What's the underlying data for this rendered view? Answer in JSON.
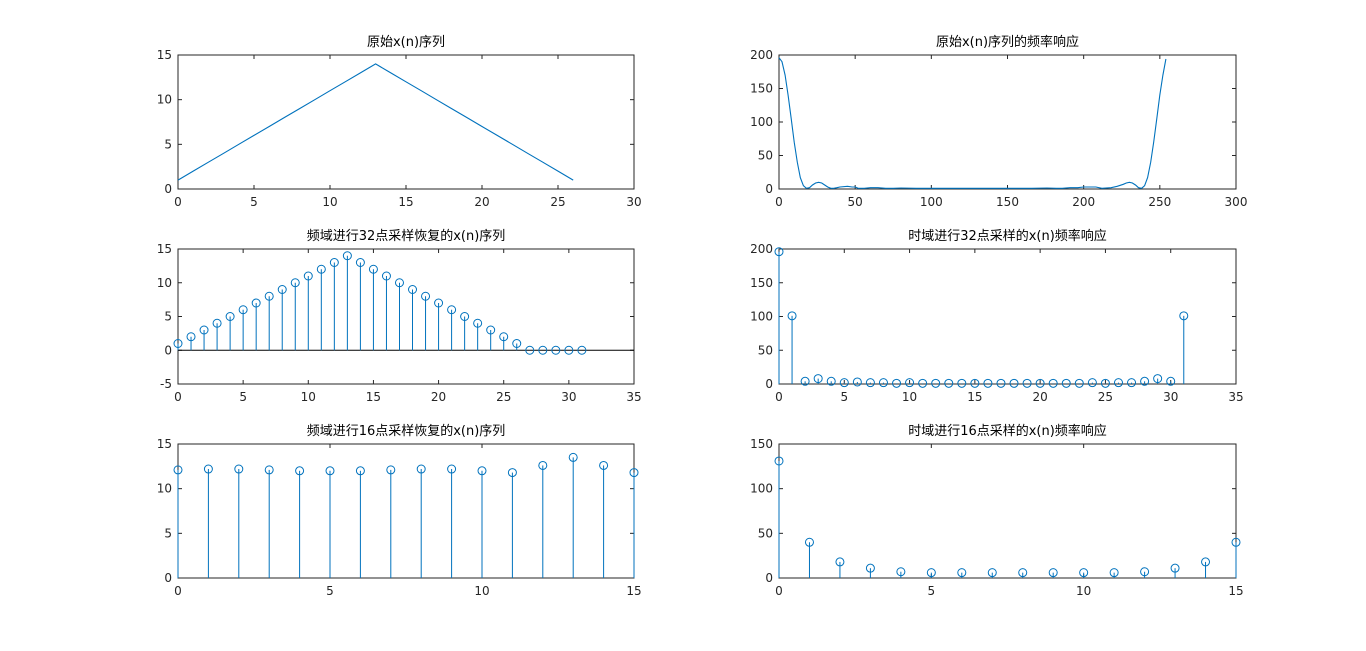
{
  "colors": {
    "series": "#0072BD",
    "axis": "#262626",
    "baseline": "#000000"
  },
  "chart_data": [
    {
      "id": "p1",
      "type": "line",
      "title": "原始x(n)序列",
      "xlim": [
        0,
        30
      ],
      "ylim": [
        0,
        15
      ],
      "xticks": [
        0,
        5,
        10,
        15,
        20,
        25,
        30
      ],
      "yticks": [
        0,
        5,
        10,
        15
      ],
      "x": [
        0,
        1,
        2,
        3,
        4,
        5,
        6,
        7,
        8,
        9,
        10,
        11,
        12,
        13,
        14,
        15,
        16,
        17,
        18,
        19,
        20,
        21,
        22,
        23,
        24,
        25,
        26
      ],
      "y": [
        1,
        2,
        3,
        4,
        5,
        6,
        7,
        8,
        9,
        10,
        11,
        12,
        13,
        14,
        13,
        12,
        11,
        10,
        9,
        8,
        7,
        6,
        5,
        4,
        3,
        2,
        1
      ]
    },
    {
      "id": "p2",
      "type": "line",
      "title": "原始x(n)序列的频率响应",
      "xlim": [
        0,
        300
      ],
      "ylim": [
        0,
        200
      ],
      "xticks": [
        0,
        50,
        100,
        150,
        200,
        250,
        300
      ],
      "yticks": [
        0,
        50,
        100,
        150,
        200
      ],
      "x": [
        0,
        2,
        4,
        6,
        8,
        10,
        12,
        14,
        16,
        18,
        20,
        22,
        24,
        26,
        28,
        30,
        32,
        34,
        36,
        38,
        40,
        45,
        48,
        50,
        52,
        56,
        60,
        65,
        70,
        75,
        80,
        90,
        100,
        110,
        120,
        128,
        136,
        146,
        156,
        166,
        176,
        182,
        186,
        191,
        196,
        200,
        204,
        206,
        208,
        212,
        218,
        222,
        226,
        228,
        230,
        232,
        234,
        236,
        238,
        240,
        242,
        244,
        246,
        248,
        250,
        252,
        254
      ],
      "y": [
        196,
        190,
        170,
        140,
        105,
        70,
        40,
        17,
        5,
        1,
        2,
        6,
        9,
        10,
        9,
        6,
        3,
        1,
        1,
        2,
        3,
        4,
        3,
        3,
        1,
        1,
        2,
        2,
        1,
        1,
        1.5,
        1,
        1,
        1,
        1,
        1,
        1,
        1,
        1,
        1,
        1.5,
        1,
        1,
        2,
        2,
        3,
        3,
        3,
        3,
        1,
        2,
        4,
        7,
        9,
        10,
        9,
        6,
        2,
        1,
        5,
        17,
        40,
        70,
        105,
        140,
        170,
        194
      ]
    },
    {
      "id": "p3",
      "type": "stem",
      "title": "频域进行32点采样恢复的x(n)序列",
      "xlim": [
        0,
        35
      ],
      "ylim": [
        -5,
        15
      ],
      "xticks": [
        0,
        5,
        10,
        15,
        20,
        25,
        30,
        35
      ],
      "yticks": [
        -5,
        0,
        5,
        10,
        15
      ],
      "baseline": 0,
      "x": [
        0,
        1,
        2,
        3,
        4,
        5,
        6,
        7,
        8,
        9,
        10,
        11,
        12,
        13,
        14,
        15,
        16,
        17,
        18,
        19,
        20,
        21,
        22,
        23,
        24,
        25,
        26,
        27,
        28,
        29,
        30,
        31
      ],
      "y": [
        1,
        2,
        3,
        4,
        5,
        6,
        7,
        8,
        9,
        10,
        11,
        12,
        13,
        14,
        13,
        12,
        11,
        10,
        9,
        8,
        7,
        6,
        5,
        4,
        3,
        2,
        1,
        0,
        0,
        0,
        0,
        0
      ]
    },
    {
      "id": "p4",
      "type": "stem",
      "title": "时域进行32点采样的x(n)频率响应",
      "xlim": [
        0,
        35
      ],
      "ylim": [
        0,
        200
      ],
      "xticks": [
        0,
        5,
        10,
        15,
        20,
        25,
        30,
        35
      ],
      "yticks": [
        0,
        50,
        100,
        150,
        200
      ],
      "x": [
        0,
        1,
        2,
        3,
        4,
        5,
        6,
        7,
        8,
        9,
        10,
        11,
        12,
        13,
        14,
        15,
        16,
        17,
        18,
        19,
        20,
        21,
        22,
        23,
        24,
        25,
        26,
        27,
        28,
        29,
        30,
        31
      ],
      "y": [
        196,
        101,
        4,
        8,
        4,
        2,
        3,
        2,
        2,
        1,
        2,
        1,
        1,
        1,
        1,
        1,
        1,
        1,
        1,
        1,
        1,
        1,
        1,
        1,
        2,
        1,
        2,
        2,
        4,
        8,
        4,
        101
      ]
    },
    {
      "id": "p5",
      "type": "stem",
      "title": "频域进行16点采样恢复的x(n)序列",
      "xlim": [
        0,
        15
      ],
      "ylim": [
        0,
        15
      ],
      "xticks": [
        0,
        5,
        10,
        15
      ],
      "yticks": [
        0,
        5,
        10,
        15
      ],
      "x": [
        0,
        1,
        2,
        3,
        4,
        5,
        6,
        7,
        8,
        9,
        10,
        11,
        12,
        13,
        14,
        15
      ],
      "y": [
        12.1,
        12.2,
        12.2,
        12.1,
        12.0,
        12.0,
        12.0,
        12.1,
        12.2,
        12.2,
        12.0,
        11.8,
        12.6,
        13.5,
        12.6,
        11.8
      ]
    },
    {
      "id": "p6",
      "type": "stem",
      "title": "时域进行16点采样的x(n)频率响应",
      "xlim": [
        0,
        15
      ],
      "ylim": [
        0,
        150
      ],
      "xticks": [
        0,
        5,
        10,
        15
      ],
      "yticks": [
        0,
        50,
        100,
        150
      ],
      "x": [
        0,
        1,
        2,
        3,
        4,
        5,
        6,
        7,
        8,
        9,
        10,
        11,
        12,
        13,
        14,
        15
      ],
      "y": [
        131,
        40,
        18,
        11,
        7,
        6,
        6,
        6,
        6,
        6,
        6,
        6,
        7,
        11,
        18,
        40
      ]
    }
  ]
}
